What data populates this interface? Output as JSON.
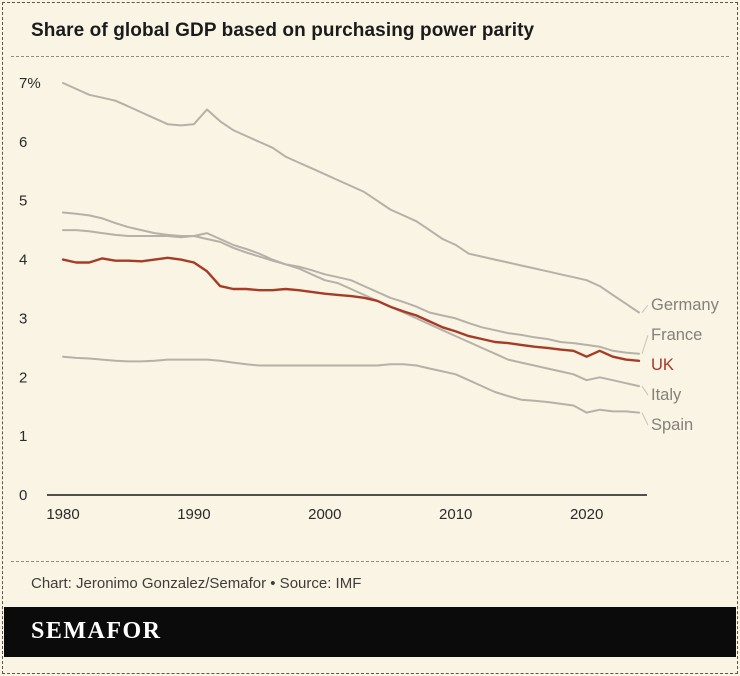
{
  "header": {
    "title": "Share of global GDP based on purchasing power parity"
  },
  "footer": {
    "credit": "Chart: Jeronimo Gonzalez/Semafor • Source: IMF",
    "logo": "SEMAFOR"
  },
  "colors": {
    "background": "#f9f4e3",
    "line_gray": "#b5b1a8",
    "uk_red": "#a63b26",
    "label_gray": "#84817a",
    "uk_label_red": "#a8372a",
    "axis_text": "#2b2b2b",
    "baseline": "#1a1a1a",
    "leader": "#c6c2b8",
    "logo_bar": "#0b0b0b"
  },
  "chart_data": {
    "type": "line",
    "title": "Share of global GDP based on purchasing power parity",
    "xlabel": "",
    "ylabel": "",
    "xlim": [
      1980,
      2024
    ],
    "ylim": [
      0,
      7
    ],
    "grid": false,
    "legend_position": "right-edge-labels",
    "xticks": [
      1980,
      1990,
      2000,
      2010,
      2020
    ],
    "yticks": [
      {
        "value": 0,
        "label": "0"
      },
      {
        "value": 1,
        "label": "1"
      },
      {
        "value": 2,
        "label": "2"
      },
      {
        "value": 3,
        "label": "3"
      },
      {
        "value": 4,
        "label": "4"
      },
      {
        "value": 5,
        "label": "5"
      },
      {
        "value": 6,
        "label": "6"
      },
      {
        "value": 7,
        "label": "7%"
      }
    ],
    "x": [
      1980,
      1981,
      1982,
      1983,
      1984,
      1985,
      1986,
      1987,
      1988,
      1989,
      1990,
      1991,
      1992,
      1993,
      1994,
      1995,
      1996,
      1997,
      1998,
      1999,
      2000,
      2001,
      2002,
      2003,
      2004,
      2005,
      2006,
      2007,
      2008,
      2009,
      2010,
      2011,
      2012,
      2013,
      2014,
      2015,
      2016,
      2017,
      2018,
      2019,
      2020,
      2021,
      2022,
      2023,
      2024
    ],
    "series": [
      {
        "name": "Germany",
        "color": "#b5b1a8",
        "label_color": "#84817a",
        "stroke_width": 2,
        "values": [
          7.0,
          6.9,
          6.8,
          6.75,
          6.7,
          6.6,
          6.5,
          6.4,
          6.3,
          6.28,
          6.3,
          6.55,
          6.35,
          6.2,
          6.1,
          6.0,
          5.9,
          5.75,
          5.65,
          5.55,
          5.45,
          5.35,
          5.25,
          5.15,
          5.0,
          4.85,
          4.75,
          4.65,
          4.5,
          4.35,
          4.25,
          4.1,
          4.05,
          4.0,
          3.95,
          3.9,
          3.85,
          3.8,
          3.75,
          3.7,
          3.65,
          3.55,
          3.4,
          3.25,
          3.1
        ]
      },
      {
        "name": "France",
        "color": "#b5b1a8",
        "label_color": "#84817a",
        "stroke_width": 2,
        "values": [
          4.8,
          4.78,
          4.75,
          4.7,
          4.62,
          4.55,
          4.5,
          4.45,
          4.42,
          4.4,
          4.4,
          4.35,
          4.3,
          4.2,
          4.12,
          4.05,
          3.98,
          3.92,
          3.88,
          3.82,
          3.75,
          3.7,
          3.65,
          3.55,
          3.45,
          3.35,
          3.28,
          3.2,
          3.1,
          3.05,
          3.0,
          2.92,
          2.85,
          2.8,
          2.75,
          2.72,
          2.68,
          2.65,
          2.6,
          2.58,
          2.55,
          2.52,
          2.45,
          2.42,
          2.4
        ]
      },
      {
        "name": "Italy",
        "color": "#b5b1a8",
        "label_color": "#84817a",
        "stroke_width": 2,
        "values": [
          4.5,
          4.5,
          4.48,
          4.45,
          4.42,
          4.4,
          4.4,
          4.4,
          4.4,
          4.38,
          4.4,
          4.45,
          4.35,
          4.25,
          4.18,
          4.1,
          4.0,
          3.92,
          3.85,
          3.75,
          3.65,
          3.6,
          3.5,
          3.4,
          3.3,
          3.2,
          3.1,
          3.0,
          2.9,
          2.8,
          2.7,
          2.6,
          2.5,
          2.4,
          2.3,
          2.25,
          2.2,
          2.15,
          2.1,
          2.05,
          1.95,
          2.0,
          1.95,
          1.9,
          1.85
        ]
      },
      {
        "name": "Spain",
        "color": "#b5b1a8",
        "label_color": "#84817a",
        "stroke_width": 2,
        "values": [
          2.35,
          2.33,
          2.32,
          2.3,
          2.28,
          2.27,
          2.27,
          2.28,
          2.3,
          2.3,
          2.3,
          2.3,
          2.28,
          2.25,
          2.22,
          2.2,
          2.2,
          2.2,
          2.2,
          2.2,
          2.2,
          2.2,
          2.2,
          2.2,
          2.2,
          2.22,
          2.22,
          2.2,
          2.15,
          2.1,
          2.05,
          1.95,
          1.85,
          1.75,
          1.68,
          1.62,
          1.6,
          1.58,
          1.55,
          1.52,
          1.4,
          1.45,
          1.42,
          1.42,
          1.4
        ]
      },
      {
        "name": "UK",
        "color": "#a63b26",
        "label_color": "#a8372a",
        "stroke_width": 2.4,
        "values": [
          4.0,
          3.95,
          3.95,
          4.02,
          3.98,
          3.98,
          3.97,
          4.0,
          4.03,
          4.0,
          3.95,
          3.8,
          3.55,
          3.5,
          3.5,
          3.48,
          3.48,
          3.5,
          3.48,
          3.45,
          3.42,
          3.4,
          3.38,
          3.35,
          3.3,
          3.2,
          3.12,
          3.05,
          2.95,
          2.85,
          2.78,
          2.7,
          2.65,
          2.6,
          2.58,
          2.55,
          2.52,
          2.5,
          2.47,
          2.45,
          2.35,
          2.45,
          2.35,
          2.3,
          2.28
        ]
      }
    ]
  }
}
